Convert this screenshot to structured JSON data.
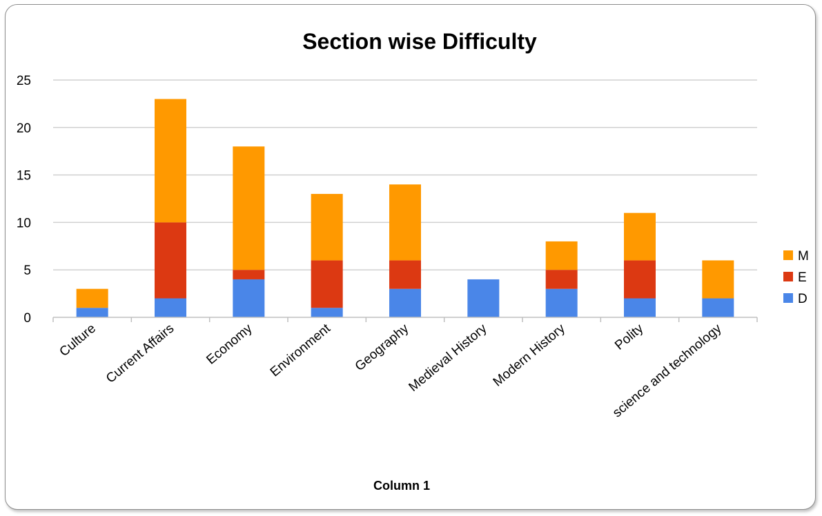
{
  "chart_data": {
    "type": "bar",
    "stacked": true,
    "title": "Section wise Difficulty",
    "xlabel": "Column 1",
    "ylabel": "",
    "ylim": [
      0,
      25
    ],
    "yticks": [
      0,
      5,
      10,
      15,
      20,
      25
    ],
    "grid": true,
    "legend_position": "right",
    "categories": [
      "Culture",
      "Current Affairs",
      "Economy",
      "Environment",
      "Geography",
      "Medieval History",
      "Modern History",
      "Polity",
      "science and technology"
    ],
    "series": [
      {
        "name": "D",
        "color": "#4a86e8",
        "values": [
          1,
          2,
          4,
          1,
          3,
          4,
          3,
          2,
          2
        ]
      },
      {
        "name": "E",
        "color": "#dc3912",
        "values": [
          0,
          8,
          1,
          5,
          3,
          0,
          2,
          4,
          0
        ]
      },
      {
        "name": "M",
        "color": "#ff9900",
        "values": [
          2,
          13,
          13,
          7,
          8,
          0,
          3,
          5,
          4
        ]
      }
    ],
    "legend_order": [
      "M",
      "E",
      "D"
    ]
  }
}
